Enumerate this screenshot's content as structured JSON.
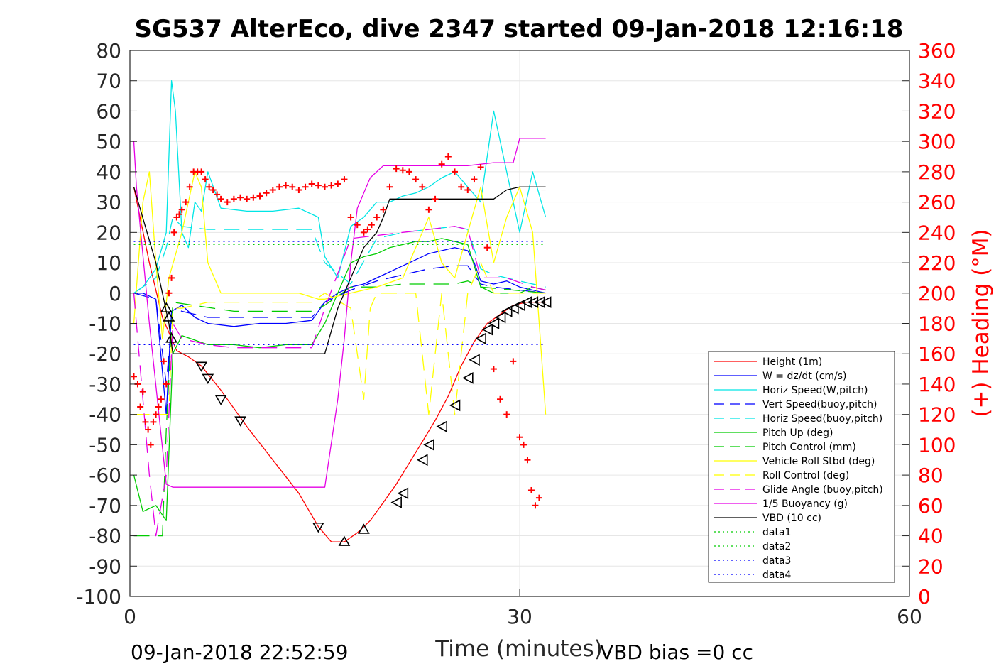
{
  "chart_data": {
    "type": "line",
    "title": "SG537 AlterEco, dive 2347 started 09-Jan-2018 12:16:18",
    "xlabel": "Time (minutes)",
    "ylabel_right": "(+) Heading (°M)",
    "xlim": [
      0,
      60
    ],
    "ylim_left": [
      -100,
      80
    ],
    "ylim_right": [
      0,
      360
    ],
    "x_ticks": [
      "0",
      "30",
      "60"
    ],
    "y_ticks_left": [
      "80",
      "70",
      "60",
      "50",
      "40",
      "30",
      "20",
      "10",
      "0",
      "-10",
      "-20",
      "-30",
      "-40",
      "-50",
      "-60",
      "-70",
      "-80",
      "-90",
      "-100"
    ],
    "y_ticks_right": [
      "360",
      "340",
      "320",
      "300",
      "280",
      "260",
      "240",
      "220",
      "200",
      "180",
      "160",
      "140",
      "120",
      "100",
      "80",
      "60",
      "40",
      "20",
      "0"
    ],
    "grid": true,
    "legend_position": "lower-right",
    "footer_left": "09-Jan-2018 22:52:59",
    "footer_right": "VBD bias =0 cc",
    "series": [
      {
        "name": "Height (1m)",
        "color": "#ff0000",
        "style": "solid",
        "x": [
          0.3,
          1.5,
          2.5,
          3.2,
          3.6,
          4.5,
          5.5,
          7,
          9,
          11,
          13,
          14.5,
          15.5,
          16.5,
          17.5,
          18.5,
          19.5,
          20.5,
          21.5,
          22.5,
          23.5,
          24.5,
          25.5,
          26.5,
          27.5,
          28.5,
          29.5,
          30.5,
          31.5,
          32
        ],
        "y": [
          35,
          10,
          -8,
          -15,
          -19,
          -21,
          -24,
          -32,
          -44,
          -55,
          -66,
          -77,
          -82,
          -82,
          -79,
          -75,
          -69,
          -63,
          -56,
          -49,
          -42,
          -34,
          -24,
          -16,
          -10,
          -7,
          -4,
          -3,
          -3,
          -3
        ]
      },
      {
        "name": "W = dz/dt (cm/s)",
        "color": "#0000ff",
        "style": "solid",
        "x": [
          0.3,
          1,
          2,
          2.8,
          3.2,
          4,
          5,
          6,
          8,
          10,
          12,
          14,
          15,
          16,
          17,
          18,
          19,
          20,
          21,
          22,
          23,
          24,
          25,
          26,
          26.5,
          27,
          28,
          29,
          30,
          31,
          32
        ],
        "y": [
          0,
          0,
          -2,
          -40,
          -6,
          -4,
          -8,
          -10,
          -11,
          -10,
          -10,
          -9,
          -3,
          0,
          2,
          3,
          5,
          7,
          9,
          11,
          13,
          14,
          15,
          14,
          10,
          4,
          3,
          4,
          2,
          1,
          0
        ]
      },
      {
        "name": "Horiz Speed(W,pitch)",
        "color": "#00e5e5",
        "style": "solid",
        "x": [
          0.3,
          1,
          2,
          2.8,
          3.2,
          3.5,
          4,
          4.5,
          5,
          5.5,
          6,
          7,
          9,
          11,
          13,
          14.5,
          15,
          16,
          17,
          18,
          19,
          20,
          21,
          22,
          23,
          24,
          25,
          26,
          27,
          28,
          29,
          30,
          31,
          32
        ],
        "y": [
          0,
          2,
          8,
          20,
          70,
          60,
          20,
          15,
          30,
          27,
          40,
          28,
          27,
          27,
          28,
          25,
          12,
          5,
          22,
          25,
          30,
          30,
          32,
          33,
          35,
          38,
          40,
          35,
          30,
          60,
          40,
          20,
          40,
          25
        ]
      },
      {
        "name": "Vert Speed(buoy,pitch)",
        "color": "#0000ff",
        "style": "dashed",
        "x": [
          0.3,
          2,
          2.8,
          3.3,
          4,
          6,
          8,
          10,
          12,
          14,
          15,
          17,
          19,
          21,
          23,
          25,
          26,
          27,
          28,
          30,
          32
        ],
        "y": [
          0,
          -2,
          -30,
          -5,
          -6,
          -8,
          -8,
          -8,
          -8,
          -8,
          -3,
          1,
          4,
          6,
          8,
          9,
          9,
          3,
          2,
          1,
          0
        ]
      },
      {
        "name": "Horiz Speed(buoy,pitch)",
        "color": "#00e5e5",
        "style": "dashed",
        "x": [
          0.3,
          2,
          2.8,
          3.3,
          4,
          6,
          8,
          10,
          12,
          14,
          15,
          17,
          19,
          21,
          23,
          25,
          26,
          27,
          28,
          30,
          32
        ],
        "y": [
          0,
          5,
          15,
          25,
          22,
          21,
          21,
          21,
          21,
          21,
          10,
          3,
          18,
          20,
          21,
          22,
          21,
          8,
          6,
          4,
          2
        ]
      },
      {
        "name": "Pitch Up (deg)",
        "color": "#00cc00",
        "style": "solid",
        "x": [
          0.3,
          1,
          2,
          2.8,
          3.3,
          4,
          6,
          8,
          10,
          12,
          14,
          15,
          16,
          17,
          18,
          19,
          20,
          21,
          22,
          23,
          24,
          25,
          26,
          27,
          28,
          29,
          30,
          31,
          32
        ],
        "y": [
          -60,
          -72,
          -70,
          -75,
          -20,
          -14,
          -17,
          -17,
          -18,
          -17,
          -17,
          -10,
          0,
          10,
          12,
          13,
          15,
          16,
          17,
          17,
          18,
          17,
          16,
          2,
          0,
          0,
          0,
          2,
          1
        ]
      },
      {
        "name": "Pitch Control (mm)",
        "color": "#00cc00",
        "style": "dashed",
        "x": [
          0.3,
          2.5,
          2.8,
          3.3,
          8,
          14,
          15,
          17,
          19,
          21,
          23,
          25,
          26,
          27,
          32
        ],
        "y": [
          -80,
          -80,
          -45,
          -3,
          -6,
          -6,
          -4,
          2,
          2,
          3,
          3,
          3,
          4,
          2,
          0
        ]
      },
      {
        "name": "Vehicle Roll Stbd (deg)",
        "color": "#ffff00",
        "style": "solid",
        "x": [
          0.3,
          1,
          1.5,
          2,
          2.5,
          3,
          4,
          5,
          5.5,
          6,
          7,
          10,
          13,
          14.5,
          15,
          17,
          19,
          21,
          22,
          23,
          24,
          25,
          26,
          27,
          28,
          29,
          30,
          31,
          31.5,
          32
        ],
        "y": [
          -10,
          30,
          40,
          10,
          -15,
          5,
          20,
          40,
          35,
          10,
          0,
          0,
          0,
          -2,
          -2,
          0,
          2,
          5,
          15,
          25,
          10,
          5,
          20,
          35,
          10,
          25,
          35,
          20,
          -10,
          -40
        ]
      },
      {
        "name": "Roll Control (deg)",
        "color": "#ffff00",
        "style": "dashed",
        "x": [
          0.3,
          2,
          3,
          3.3,
          4,
          6,
          8,
          14,
          15,
          17,
          18,
          18.5,
          19,
          20,
          22,
          23,
          24,
          25,
          26,
          27,
          28,
          30,
          32
        ],
        "y": [
          -40,
          -40,
          -40,
          -5,
          -5,
          -3,
          -3,
          -3,
          0,
          -5,
          -35,
          -5,
          0,
          0,
          0,
          -40,
          0,
          -40,
          0,
          10,
          0,
          0,
          0
        ]
      },
      {
        "name": "Glide Angle (buoy,pitch)",
        "color": "#e500e5",
        "style": "dashed",
        "x": [
          0.3,
          1.5,
          2,
          2.8,
          3.3,
          4,
          6,
          8,
          10,
          12,
          14,
          15,
          17,
          19,
          21,
          23,
          25,
          26,
          27,
          29,
          31,
          32
        ],
        "y": [
          0,
          -60,
          -80,
          -60,
          -10,
          -15,
          -17,
          -18,
          -18,
          -18,
          -18,
          -5,
          18,
          19,
          20,
          21,
          22,
          21,
          5,
          5,
          2,
          1
        ]
      },
      {
        "name": "1/5 Buoyancy (g)",
        "color": "#e500e5",
        "style": "solid",
        "x": [
          0.3,
          0.5,
          1.5,
          2.8,
          3.3,
          14.5,
          15,
          16,
          16.5,
          17,
          17.5,
          18,
          18.5,
          19.5,
          20,
          26,
          28,
          29.5,
          30,
          32
        ],
        "y": [
          50,
          35,
          -10,
          -63,
          -64,
          -64,
          -64,
          -35,
          -15,
          10,
          28,
          33,
          38,
          42,
          42,
          42,
          43,
          43,
          51,
          51
        ]
      },
      {
        "name": "VBD (10 cc)",
        "color": "#000000",
        "style": "solid",
        "x": [
          0.3,
          2,
          3,
          3.3,
          14.5,
          15,
          16,
          17,
          18,
          19,
          19.5,
          20,
          28,
          29,
          30,
          32
        ],
        "y": [
          35,
          10,
          -10,
          -20,
          -20,
          -20,
          -5,
          5,
          15,
          20,
          25,
          31,
          31,
          34,
          35,
          35
        ]
      },
      {
        "name": "data1",
        "color": "#00cc00",
        "style": "dotted",
        "x": [
          0.3,
          32
        ],
        "y": [
          16,
          16
        ]
      },
      {
        "name": "data2",
        "color": "#00cc00",
        "style": "dotted",
        "x": [
          0.3,
          32
        ],
        "y": [
          -17,
          -17
        ]
      },
      {
        "name": "data3",
        "color": "#0000ff",
        "style": "dotted",
        "x": [
          0.3,
          32
        ],
        "y": [
          17,
          17
        ]
      },
      {
        "name": "data4",
        "color": "#0000ff",
        "style": "dotted",
        "x": [
          0.3,
          32
        ],
        "y": [
          -17,
          -17
        ]
      }
    ],
    "reference_lines": [
      {
        "color": "#8b0000",
        "style": "dashed",
        "y_right": 268,
        "x": [
          0.3,
          32
        ]
      }
    ],
    "heading_points": {
      "marker": "+",
      "color": "#ff0000",
      "axis": "right",
      "x": [
        0.3,
        0.6,
        0.8,
        1,
        1.2,
        1.4,
        1.6,
        1.8,
        2,
        2.2,
        2.4,
        2.6,
        2.8,
        3,
        3.2,
        3.4,
        3.6,
        3.8,
        4,
        4.3,
        4.6,
        4.9,
        5.2,
        5.5,
        5.8,
        6.1,
        6.4,
        6.7,
        7,
        7.5,
        8,
        8.5,
        9,
        9.5,
        10,
        10.5,
        11,
        11.5,
        12,
        12.5,
        13,
        13.5,
        14,
        14.5,
        15,
        15.5,
        16,
        16.5,
        17,
        17.5,
        18,
        18.3,
        18.6,
        19,
        19.5,
        20,
        20.5,
        21,
        21.5,
        22,
        22.5,
        23,
        23.5,
        24,
        24.5,
        25,
        25.5,
        26,
        26.5,
        27,
        27.5,
        28,
        28.5,
        29,
        29.5,
        30,
        30.3,
        30.6,
        30.9,
        31.2,
        31.5
      ],
      "y": [
        145,
        140,
        125,
        135,
        115,
        110,
        100,
        115,
        120,
        125,
        130,
        155,
        140,
        200,
        210,
        240,
        250,
        252,
        255,
        260,
        270,
        280,
        280,
        280,
        275,
        270,
        268,
        265,
        262,
        260,
        262,
        263,
        262,
        263,
        264,
        266,
        268,
        270,
        271,
        270,
        268,
        270,
        272,
        271,
        270,
        271,
        272,
        275,
        250,
        245,
        240,
        242,
        245,
        250,
        255,
        270,
        282,
        281,
        280,
        275,
        270,
        255,
        262,
        285,
        290,
        280,
        270,
        268,
        275,
        283,
        230,
        150,
        130,
        120,
        155,
        105,
        100,
        90,
        70,
        60,
        65
      ]
    },
    "depth_markers": {
      "marker": "triangles",
      "color": "#000000",
      "x": [
        2.8,
        3,
        3.2,
        5.5,
        6,
        7,
        8.5,
        14.5,
        16.5,
        18,
        20.5,
        21,
        22.5,
        23,
        24,
        25,
        26,
        26.5,
        27,
        27.5,
        28,
        28.5,
        29,
        29.5,
        30,
        30.5,
        31,
        31.5,
        32
      ],
      "y": [
        -5,
        -8,
        -15,
        -24,
        -28,
        -35,
        -42,
        -77,
        -82,
        -78,
        -69,
        -66,
        -55,
        -50,
        -44,
        -37,
        -28,
        -22,
        -15,
        -12,
        -10,
        -8,
        -6,
        -5,
        -4,
        -3,
        -3,
        -3,
        -3
      ]
    }
  }
}
